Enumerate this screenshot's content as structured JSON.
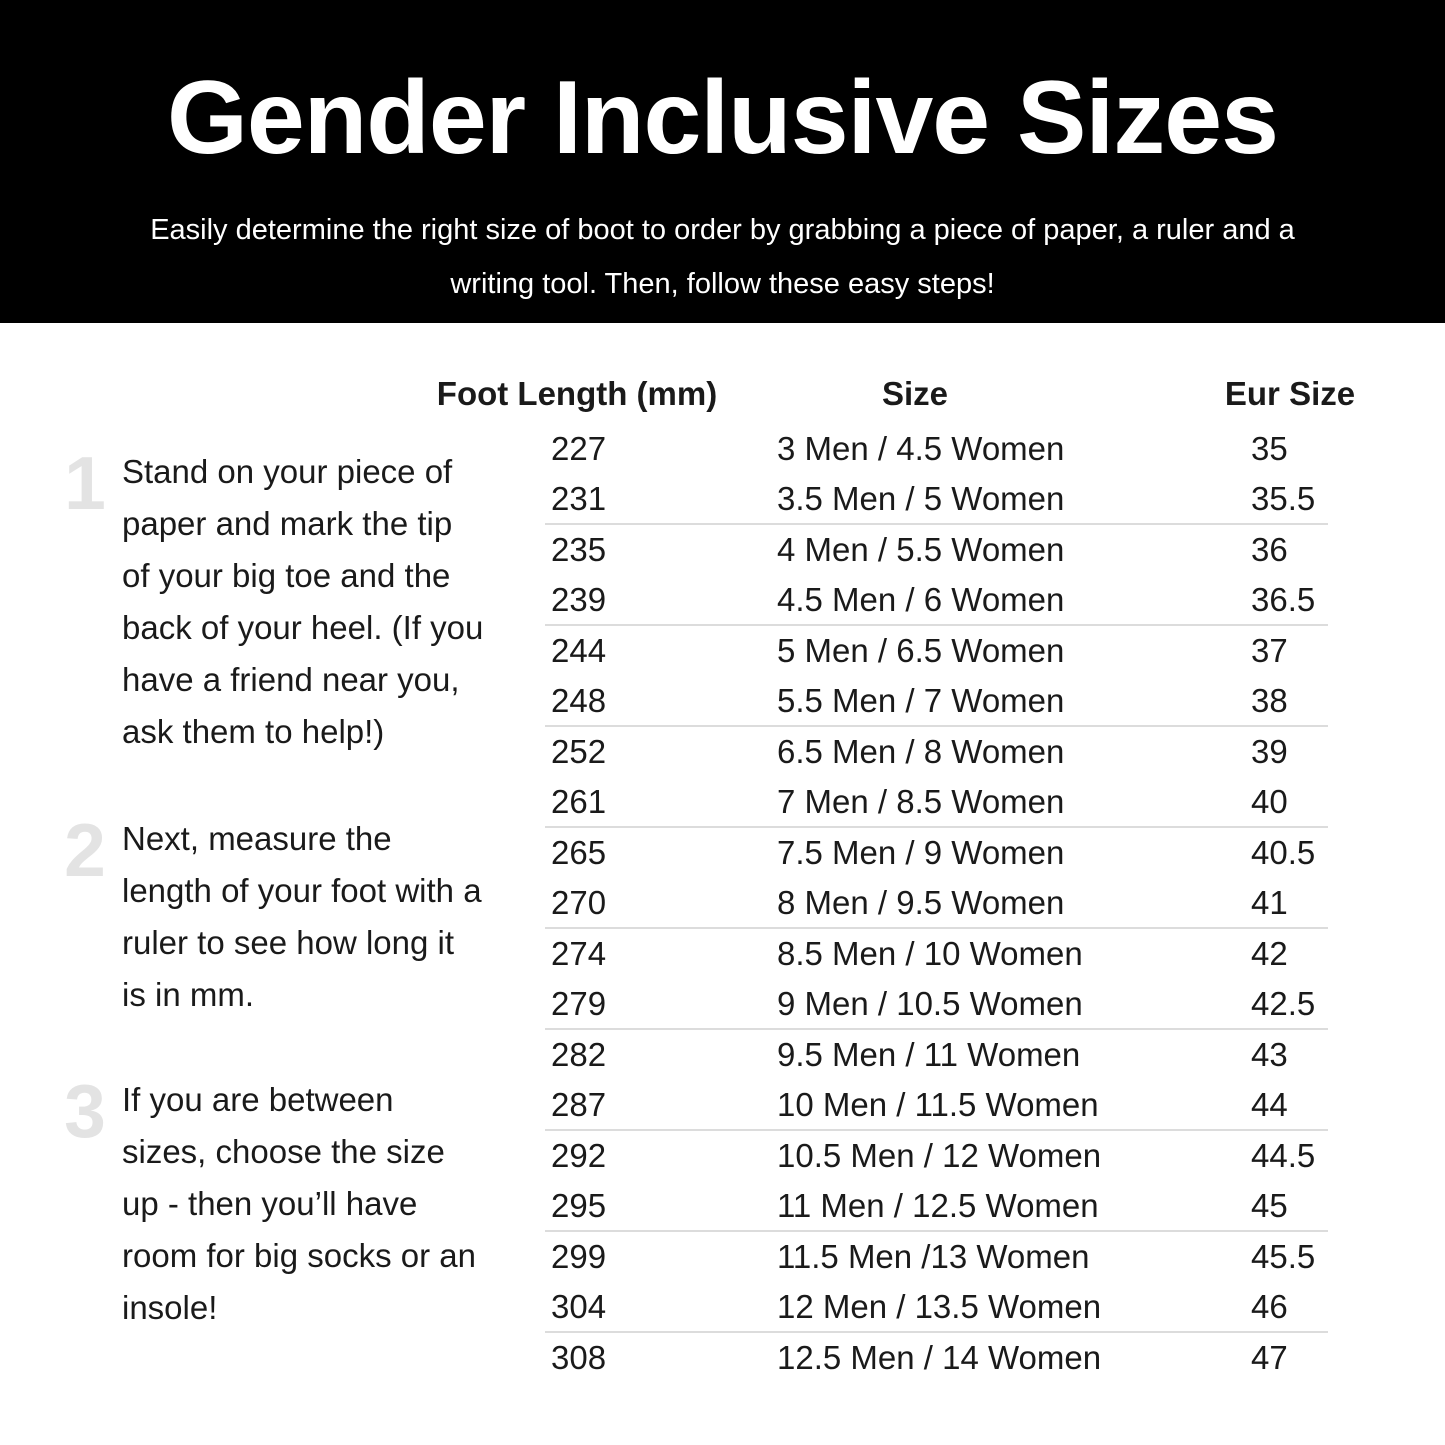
{
  "header": {
    "title": "Gender Inclusive Sizes",
    "subtitle_lines": [
      "Easily determine the right size of boot to order by grabbing a piece of paper, a ruler and a",
      "writing tool. Then, follow these easy steps!"
    ]
  },
  "steps": [
    {
      "number": "1",
      "lines": [
        "Stand on your piece of",
        "paper and mark the tip",
        "of your big toe and the",
        "back of your heel. (If you",
        "have a friend near you,",
        "ask them to help!)"
      ]
    },
    {
      "number": "2",
      "lines": [
        "Next, measure the",
        "length of your foot with a",
        "ruler to see how long it",
        "is in mm."
      ]
    },
    {
      "number": "3",
      "lines": [
        "If you are between",
        "sizes, choose the size",
        "up - then you’ll have",
        "room for big socks or an",
        "insole!"
      ]
    }
  ],
  "table": {
    "columns": [
      "Foot Length (mm)",
      "Size",
      "Eur Size"
    ],
    "rows": [
      {
        "foot_length_mm": "227",
        "size": "3 Men / 4.5 Women",
        "eur_size": "35"
      },
      {
        "foot_length_mm": "231",
        "size": "3.5 Men / 5 Women",
        "eur_size": "35.5"
      },
      {
        "foot_length_mm": "235",
        "size": "4 Men / 5.5 Women",
        "eur_size": "36"
      },
      {
        "foot_length_mm": "239",
        "size": "4.5 Men / 6 Women",
        "eur_size": "36.5"
      },
      {
        "foot_length_mm": "244",
        "size": "5 Men / 6.5 Women",
        "eur_size": "37"
      },
      {
        "foot_length_mm": "248",
        "size": "5.5 Men / 7 Women",
        "eur_size": "38"
      },
      {
        "foot_length_mm": "252",
        "size": "6.5 Men / 8 Women",
        "eur_size": "39"
      },
      {
        "foot_length_mm": "261",
        "size": "7 Men / 8.5 Women",
        "eur_size": "40"
      },
      {
        "foot_length_mm": "265",
        "size": "7.5 Men / 9 Women",
        "eur_size": "40.5"
      },
      {
        "foot_length_mm": "270",
        "size": "8 Men / 9.5 Women",
        "eur_size": "41"
      },
      {
        "foot_length_mm": "274",
        "size": "8.5 Men / 10 Women",
        "eur_size": "42"
      },
      {
        "foot_length_mm": "279",
        "size": "9 Men / 10.5 Women",
        "eur_size": "42.5"
      },
      {
        "foot_length_mm": "282",
        "size": "9.5 Men / 11 Women",
        "eur_size": "43"
      },
      {
        "foot_length_mm": "287",
        "size": "10 Men / 11.5 Women",
        "eur_size": "44"
      },
      {
        "foot_length_mm": "292",
        "size": "10.5 Men / 12 Women",
        "eur_size": "44.5"
      },
      {
        "foot_length_mm": "295",
        "size": "11 Men / 12.5 Women",
        "eur_size": "45"
      },
      {
        "foot_length_mm": "299",
        "size": "11.5 Men /13 Women",
        "eur_size": "45.5"
      },
      {
        "foot_length_mm": "304",
        "size": "12 Men / 13.5 Women",
        "eur_size": "46"
      },
      {
        "foot_length_mm": "308",
        "size": "12.5 Men / 14 Women",
        "eur_size": "47"
      }
    ]
  },
  "colors": {
    "page_bg": "#ffffff",
    "header_bg": "#000000",
    "header_text": "#ffffff",
    "body_text": "#1a1a1a",
    "step_number": "#e3e3e3",
    "row_divider": "#dcdcdc"
  }
}
